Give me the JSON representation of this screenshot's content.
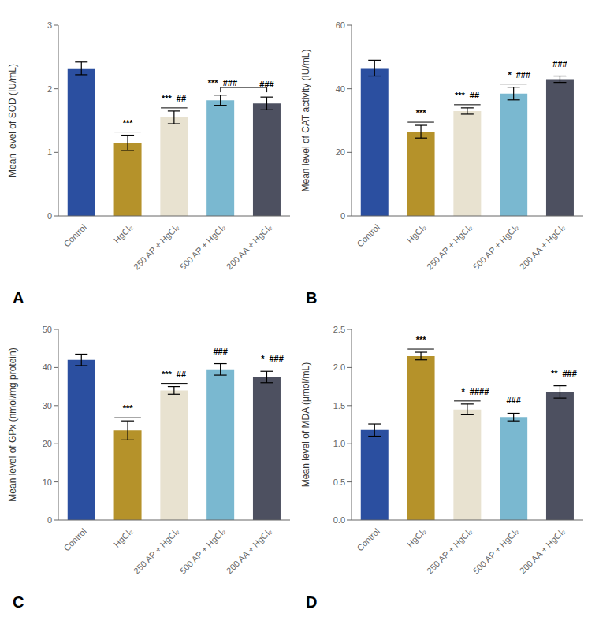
{
  "chart_data": [
    {
      "type": "bar",
      "title": "A",
      "ylabel": "Mean level of SOD (IU/mL)",
      "categories": [
        "Control",
        "HgCl₂",
        "250 AP + HgCl₂",
        "500 AP + HgCl₂",
        "200 AA + HgCl₂"
      ],
      "values": [
        2.32,
        1.15,
        1.55,
        1.82,
        1.77
      ],
      "errors": [
        0.1,
        0.12,
        0.1,
        0.08,
        0.1
      ],
      "colors": [
        "#2b4fa0",
        "#b5922a",
        "#e8e2d0",
        "#7ab8d0",
        "#4d5060"
      ],
      "ylim": [
        0,
        3
      ],
      "yticks": [
        0,
        1,
        2,
        3
      ],
      "grid": false,
      "annotations": [
        {
          "category": "HgCl₂",
          "text": "***",
          "line": true
        },
        {
          "category": "250 AP + HgCl₂",
          "text": "***",
          "text2": "##",
          "line": true
        },
        {
          "category": "500 AP + HgCl₂",
          "text": "***",
          "text2": "###",
          "line": false
        },
        {
          "category": "200 AA + HgCl₂",
          "text": "###",
          "line": false
        }
      ],
      "bracket": {
        "from": "500 AP + HgCl₂",
        "to": "200 AA + HgCl₂",
        "y": 2.02
      }
    },
    {
      "type": "bar",
      "title": "B",
      "ylabel": "Mean level of CAT activity (IU/mL)",
      "categories": [
        "Control",
        "HgCl₂",
        "250 AP + HgCl₂",
        "500 AP + HgCl₂",
        "200 AA + HgCl₂"
      ],
      "values": [
        46.5,
        26.5,
        33.0,
        38.5,
        43.0
      ],
      "errors": [
        2.5,
        2.0,
        1.0,
        2.0,
        1.0
      ],
      "colors": [
        "#2b4fa0",
        "#b5922a",
        "#e8e2d0",
        "#7ab8d0",
        "#4d5060"
      ],
      "ylim": [
        0,
        60
      ],
      "yticks": [
        0,
        20,
        40,
        60
      ],
      "grid": false,
      "annotations": [
        {
          "category": "HgCl₂",
          "text": "***",
          "line": true
        },
        {
          "category": "250 AP + HgCl₂",
          "text": "***",
          "text2": "##",
          "line": true
        },
        {
          "category": "500 AP + HgCl₂",
          "text": "*",
          "text2": "###",
          "line": true
        },
        {
          "category": "200 AA + HgCl₂",
          "text": "###",
          "line": false
        }
      ]
    },
    {
      "type": "bar",
      "title": "C",
      "ylabel": "Mean level of GPx (nmol/mg protein)",
      "categories": [
        "Control",
        "HgCl₂",
        "250 AP + HgCl₂",
        "500 AP + HgCl₂",
        "200 AA + HgCl₂"
      ],
      "values": [
        42.0,
        23.5,
        34.0,
        39.5,
        37.5
      ],
      "errors": [
        1.5,
        2.5,
        1.0,
        1.5,
        1.5
      ],
      "colors": [
        "#2b4fa0",
        "#b5922a",
        "#e8e2d0",
        "#7ab8d0",
        "#4d5060"
      ],
      "ylim": [
        0,
        50
      ],
      "yticks": [
        0,
        10,
        20,
        30,
        40,
        50
      ],
      "grid": false,
      "annotations": [
        {
          "category": "HgCl₂",
          "text": "***",
          "line": true
        },
        {
          "category": "250 AP + HgCl₂",
          "text": "***",
          "text2": "##",
          "line": true
        },
        {
          "category": "500 AP + HgCl₂",
          "text": "###",
          "line": false
        },
        {
          "category": "200 AA + HgCl₂",
          "text": "*",
          "text2": "###",
          "line": false
        }
      ]
    },
    {
      "type": "bar",
      "title": "D",
      "ylabel": "Mean level of MDA (μmol/mL)",
      "categories": [
        "Control",
        "HgCl₂",
        "250 AP + HgCl₂",
        "500 AP + HgCl₂",
        "200 AA + HgCl₂"
      ],
      "values": [
        1.18,
        2.15,
        1.45,
        1.35,
        1.68
      ],
      "errors": [
        0.08,
        0.05,
        0.07,
        0.05,
        0.08
      ],
      "colors": [
        "#2b4fa0",
        "#b5922a",
        "#e8e2d0",
        "#7ab8d0",
        "#4d5060"
      ],
      "ylim": [
        0,
        2.5
      ],
      "yticks": [
        {
          "value": 0,
          "label": "0.0"
        },
        0.5,
        {
          "value": 1,
          "label": "1.0"
        },
        1.5,
        {
          "value": 2,
          "label": "2.0"
        },
        2.5
      ],
      "grid": false,
      "annotations": [
        {
          "category": "HgCl₂",
          "text": "***",
          "line": true
        },
        {
          "category": "250 AP + HgCl₂",
          "text": "*",
          "text2": "####",
          "line": true
        },
        {
          "category": "500 AP + HgCl₂",
          "text": "###",
          "line": false
        },
        {
          "category": "200 AA + HgCl₂",
          "text": "**",
          "text2": "###",
          "line": false
        }
      ]
    }
  ]
}
